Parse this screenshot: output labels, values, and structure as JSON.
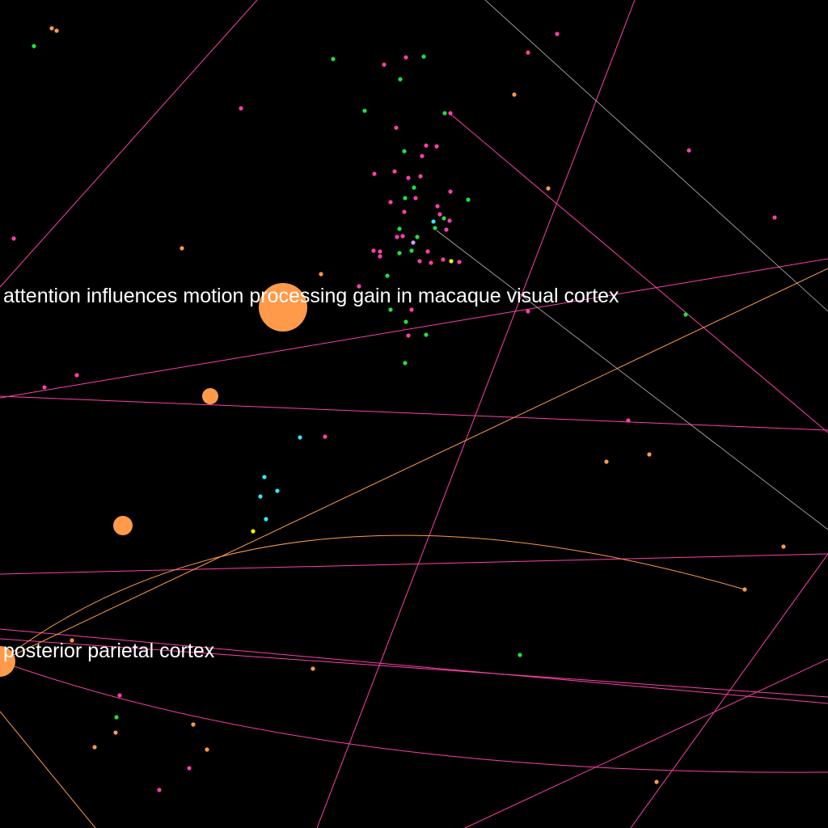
{
  "colors": {
    "background": "#000000",
    "label_text": "#ffffff",
    "orange": "#ff9a4a",
    "pink": "#ff3fa8",
    "magenta": "#ff4fc8",
    "green": "#22e03a",
    "cyan": "#2fe8ff",
    "yellow": "#f5f500",
    "gray": "#b8b8b8",
    "lavender": "#c7a0ff"
  },
  "labels": {
    "hub_main": "attention influences motion processing gain in macaque visual cortex",
    "hub_ppc": "posterior parietal cortex"
  }
}
